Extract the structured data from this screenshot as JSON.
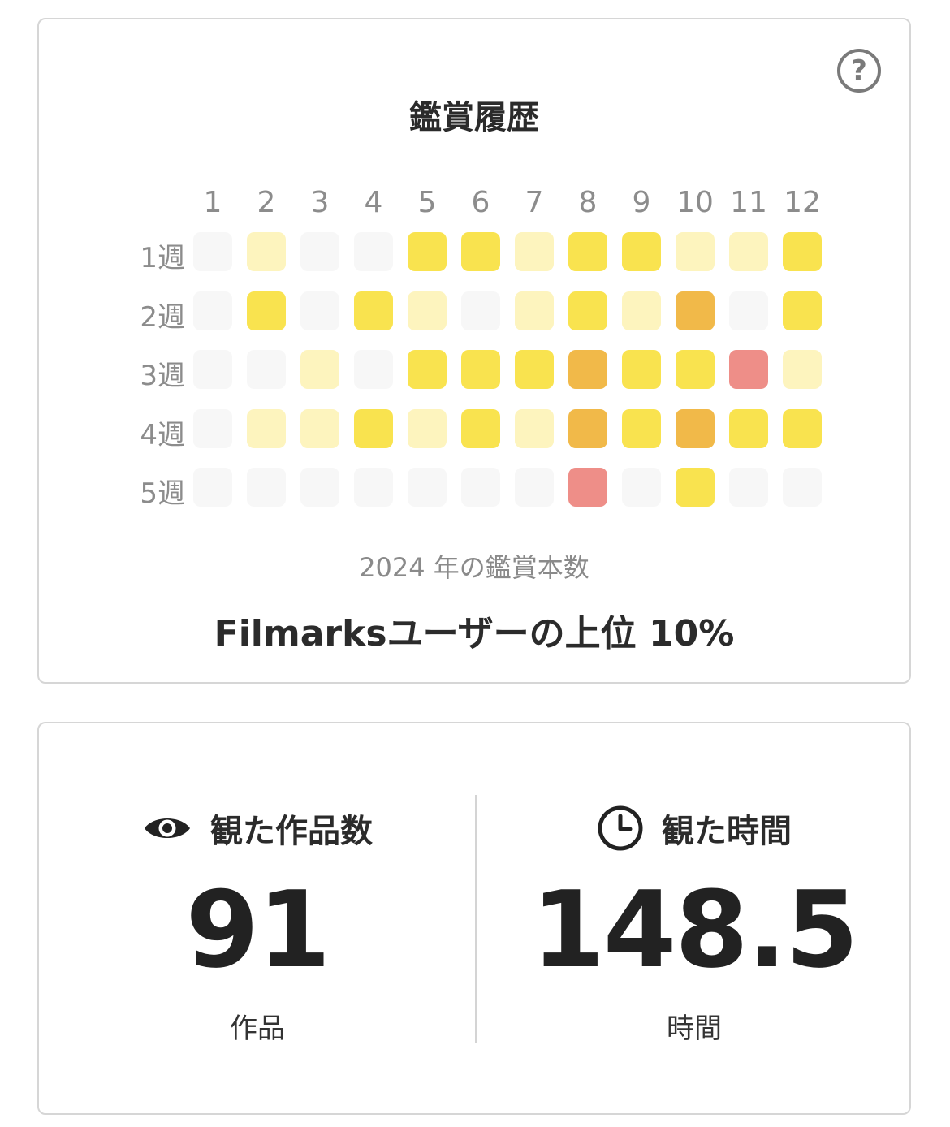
{
  "history": {
    "title": "鑑賞履歴",
    "help_label": "?",
    "months": [
      "1",
      "2",
      "3",
      "4",
      "5",
      "6",
      "7",
      "8",
      "9",
      "10",
      "11",
      "12"
    ],
    "weeks": [
      "1週",
      "2週",
      "3週",
      "4週",
      "5週"
    ],
    "levels": [
      [
        0,
        1,
        0,
        0,
        2,
        2,
        1,
        2,
        2,
        1,
        1,
        2
      ],
      [
        0,
        2,
        0,
        2,
        1,
        0,
        1,
        2,
        1,
        3,
        0,
        2
      ],
      [
        0,
        0,
        1,
        0,
        2,
        2,
        2,
        3,
        2,
        2,
        4,
        1
      ],
      [
        0,
        1,
        1,
        2,
        1,
        2,
        1,
        3,
        2,
        3,
        2,
        2
      ],
      [
        0,
        0,
        0,
        0,
        0,
        0,
        0,
        4,
        0,
        2,
        0,
        0
      ]
    ],
    "level_colors": [
      "#f7f7f7",
      "#fdf4be",
      "#f9e34f",
      "#f1b949",
      "#ee8e88"
    ],
    "year_caption": "2024 年の鑑賞本数",
    "rank_text": "Filmarksユーザーの上位 10%"
  },
  "stats": {
    "works": {
      "icon": "eye-icon",
      "label": "観た作品数",
      "value": "91",
      "unit": "作品"
    },
    "time": {
      "icon": "clock-icon",
      "label": "観た時間",
      "value": "148.5",
      "unit": "時間"
    }
  }
}
